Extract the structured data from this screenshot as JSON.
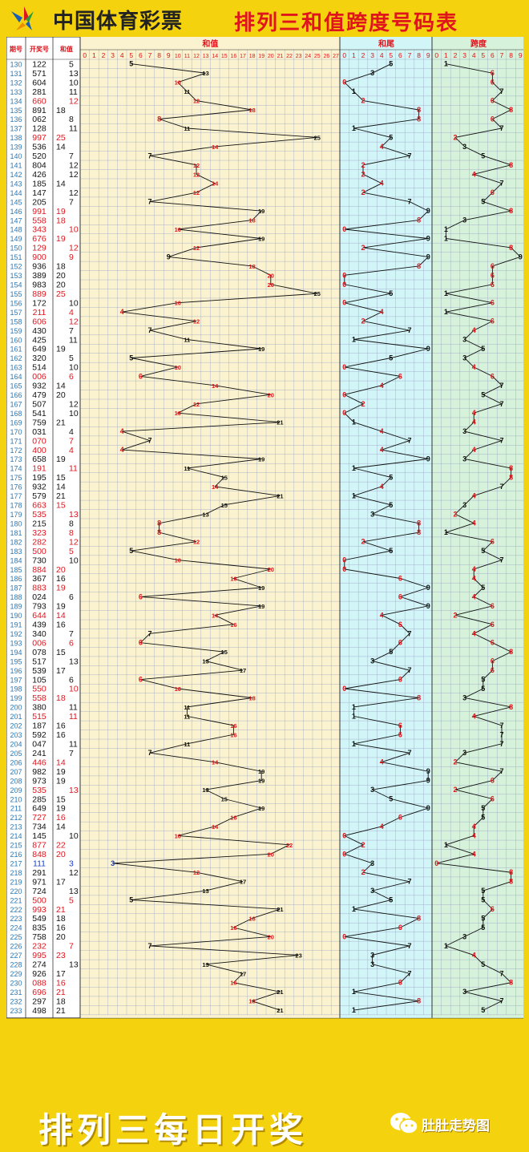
{
  "header": {
    "brand": "中国体育彩票",
    "title": "排列三和值跨度号码表"
  },
  "footer": {
    "slogan": "排列三每日开奖",
    "account": "肚肚走势图"
  },
  "colors": {
    "background": "#f5d20e",
    "title_red": "#e0141c",
    "sum_panel": "#fbf3cf",
    "tail_panel": "#d2f5f7",
    "span_panel": "#d6f2da",
    "red": "#e0141c",
    "blue": "#1a3ec8",
    "period": "#2b78b8",
    "grid": "#9aa3c6"
  },
  "chart_data": {
    "type": "table",
    "columns": [
      "期号",
      "开奖号",
      "和值"
    ],
    "panels": [
      {
        "name": "和值",
        "ticks": [
          "0",
          "1",
          "2",
          "3",
          "4",
          "5",
          "6",
          "7",
          "8",
          "9",
          "10",
          "11",
          "12",
          "13",
          "14",
          "15",
          "16",
          "17",
          "18",
          "19",
          "20",
          "21",
          "22",
          "23",
          "24",
          "25",
          "26",
          "27"
        ]
      },
      {
        "name": "和尾",
        "ticks": [
          "0",
          "1",
          "2",
          "3",
          "4",
          "5",
          "6",
          "7",
          "8",
          "9"
        ]
      },
      {
        "name": "跨度",
        "ticks": [
          "0",
          "1",
          "2",
          "3",
          "4",
          "5",
          "6",
          "7",
          "8",
          "9"
        ]
      }
    ],
    "rows": [
      [
        "130",
        "122",
        "5"
      ],
      [
        "131",
        "571",
        "13"
      ],
      [
        "132",
        "604",
        "10"
      ],
      [
        "133",
        "281",
        "11"
      ],
      [
        "134",
        "660",
        "12"
      ],
      [
        "135",
        "891",
        "18"
      ],
      [
        "136",
        "062",
        "8"
      ],
      [
        "137",
        "128",
        "11"
      ],
      [
        "138",
        "997",
        "25"
      ],
      [
        "139",
        "536",
        "14"
      ],
      [
        "140",
        "520",
        "7"
      ],
      [
        "141",
        "804",
        "12"
      ],
      [
        "142",
        "426",
        "12"
      ],
      [
        "143",
        "185",
        "14"
      ],
      [
        "144",
        "147",
        "12"
      ],
      [
        "145",
        "205",
        "7"
      ],
      [
        "146",
        "991",
        "19"
      ],
      [
        "147",
        "558",
        "18"
      ],
      [
        "148",
        "343",
        "10"
      ],
      [
        "149",
        "676",
        "19"
      ],
      [
        "150",
        "129",
        "12"
      ],
      [
        "151",
        "900",
        "9"
      ],
      [
        "152",
        "936",
        "18"
      ],
      [
        "153",
        "389",
        "20"
      ],
      [
        "154",
        "983",
        "20"
      ],
      [
        "155",
        "889",
        "25"
      ],
      [
        "156",
        "172",
        "10"
      ],
      [
        "157",
        "211",
        "4"
      ],
      [
        "158",
        "606",
        "12"
      ],
      [
        "159",
        "430",
        "7"
      ],
      [
        "160",
        "425",
        "11"
      ],
      [
        "161",
        "649",
        "19"
      ],
      [
        "162",
        "320",
        "5"
      ],
      [
        "163",
        "514",
        "10"
      ],
      [
        "164",
        "006",
        "6"
      ],
      [
        "165",
        "932",
        "14"
      ],
      [
        "166",
        "479",
        "20"
      ],
      [
        "167",
        "507",
        "12"
      ],
      [
        "168",
        "541",
        "10"
      ],
      [
        "169",
        "759",
        "21"
      ],
      [
        "170",
        "031",
        "4"
      ],
      [
        "171",
        "070",
        "7"
      ],
      [
        "172",
        "400",
        "4"
      ],
      [
        "173",
        "658",
        "19"
      ],
      [
        "174",
        "191",
        "11"
      ],
      [
        "175",
        "195",
        "15"
      ],
      [
        "176",
        "932",
        "14"
      ],
      [
        "177",
        "579",
        "21"
      ],
      [
        "178",
        "663",
        "15"
      ],
      [
        "179",
        "535",
        "13"
      ],
      [
        "180",
        "215",
        "8"
      ],
      [
        "181",
        "323",
        "8"
      ],
      [
        "182",
        "282",
        "12"
      ],
      [
        "183",
        "500",
        "5"
      ],
      [
        "184",
        "730",
        "10"
      ],
      [
        "185",
        "884",
        "20"
      ],
      [
        "186",
        "367",
        "16"
      ],
      [
        "187",
        "883",
        "19"
      ],
      [
        "188",
        "024",
        "6"
      ],
      [
        "189",
        "793",
        "19"
      ],
      [
        "190",
        "644",
        "14"
      ],
      [
        "191",
        "439",
        "16"
      ],
      [
        "192",
        "340",
        "7"
      ],
      [
        "193",
        "006",
        "6"
      ],
      [
        "194",
        "078",
        "15"
      ],
      [
        "195",
        "517",
        "13"
      ],
      [
        "196",
        "539",
        "17"
      ],
      [
        "197",
        "105",
        "6"
      ],
      [
        "198",
        "550",
        "10"
      ],
      [
        "199",
        "558",
        "18"
      ],
      [
        "200",
        "380",
        "11"
      ],
      [
        "201",
        "515",
        "11"
      ],
      [
        "202",
        "187",
        "16"
      ],
      [
        "203",
        "592",
        "16"
      ],
      [
        "204",
        "047",
        "11"
      ],
      [
        "205",
        "241",
        "7"
      ],
      [
        "206",
        "446",
        "14"
      ],
      [
        "207",
        "982",
        "19"
      ],
      [
        "208",
        "973",
        "19"
      ],
      [
        "209",
        "535",
        "13"
      ],
      [
        "210",
        "285",
        "15"
      ],
      [
        "211",
        "649",
        "19"
      ],
      [
        "212",
        "727",
        "16"
      ],
      [
        "213",
        "734",
        "14"
      ],
      [
        "214",
        "145",
        "10"
      ],
      [
        "215",
        "877",
        "22"
      ],
      [
        "216",
        "848",
        "20"
      ],
      [
        "217",
        "111",
        "3"
      ],
      [
        "218",
        "291",
        "12"
      ],
      [
        "219",
        "971",
        "17"
      ],
      [
        "220",
        "724",
        "13"
      ],
      [
        "221",
        "500",
        "5"
      ],
      [
        "222",
        "993",
        "21"
      ],
      [
        "223",
        "549",
        "18"
      ],
      [
        "224",
        "835",
        "16"
      ],
      [
        "225",
        "758",
        "20"
      ],
      [
        "226",
        "232",
        "7"
      ],
      [
        "227",
        "995",
        "23"
      ],
      [
        "228",
        "274",
        "13"
      ],
      [
        "229",
        "926",
        "17"
      ],
      [
        "230",
        "088",
        "16"
      ],
      [
        "231",
        "696",
        "21"
      ],
      [
        "232",
        "297",
        "18"
      ],
      [
        "233",
        "498",
        "21"
      ]
    ]
  }
}
